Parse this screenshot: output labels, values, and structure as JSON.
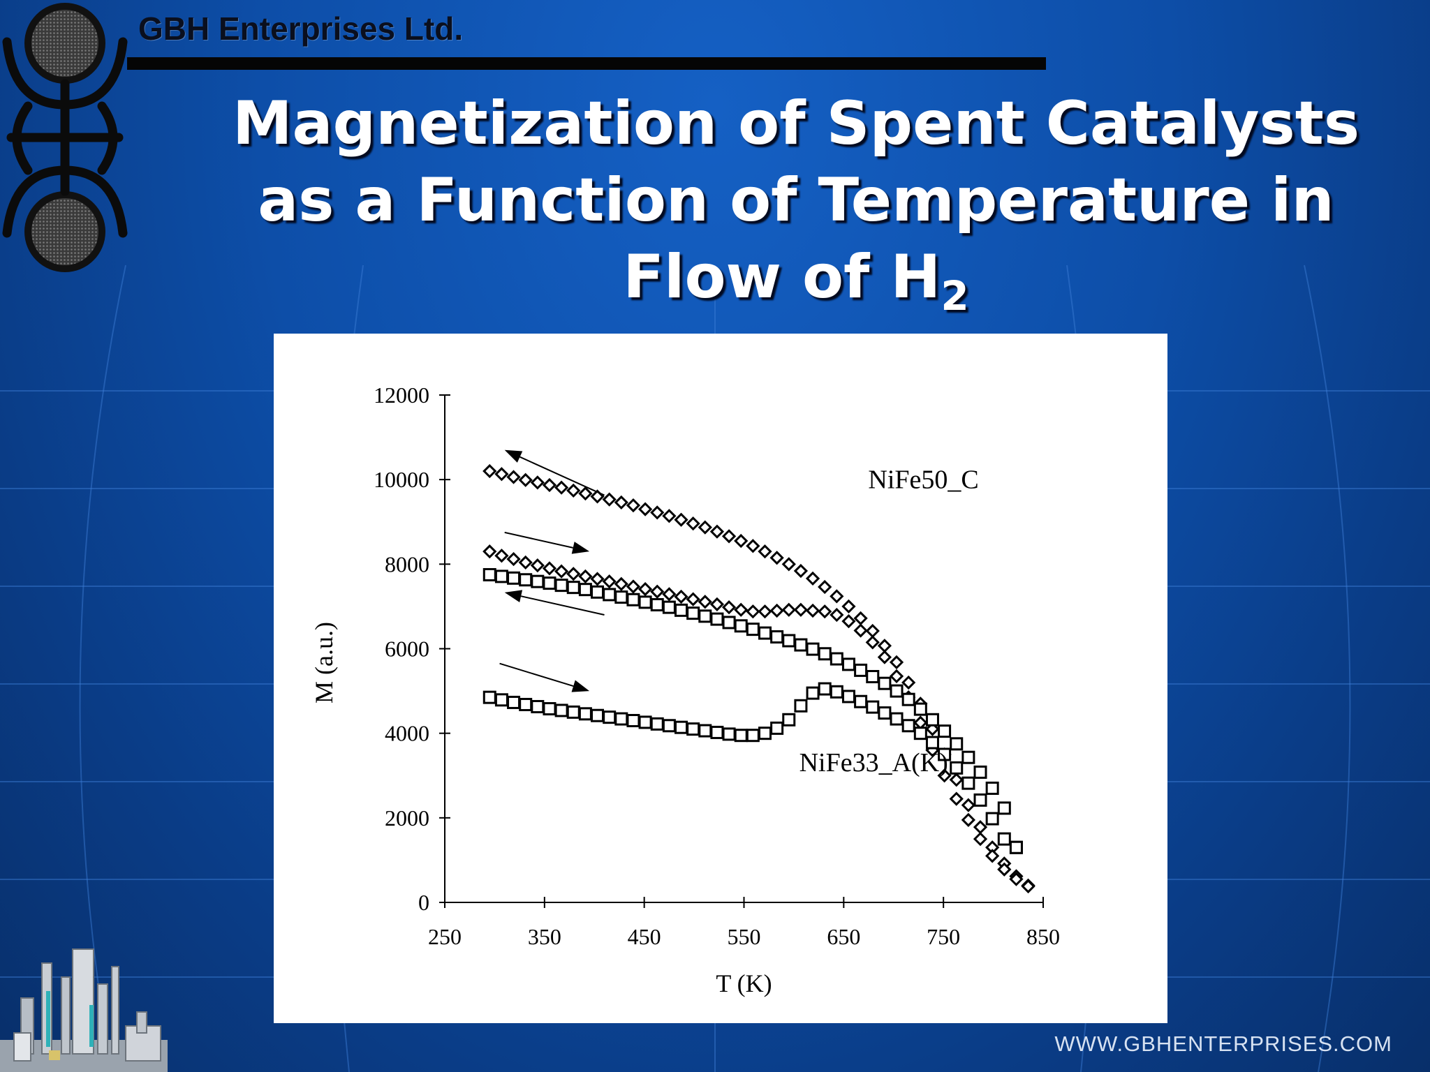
{
  "header": {
    "company": "GBH Enterprises Ltd.",
    "title_lines": [
      "Magnetization of Spent Catalysts",
      "as a Function of Temperature in",
      "Flow of H"
    ],
    "title_subscript": "2"
  },
  "footer": {
    "website": "WWW.GBHENTERPRISES.COM"
  },
  "colors": {
    "background": "#0d4ea8",
    "title": "#ffffff",
    "plot_background": "#ffffff",
    "ink": "#000000"
  },
  "chart_data": {
    "type": "scatter",
    "title": "",
    "xlabel": "T (K)",
    "ylabel": "M (a.u.)",
    "xlim": [
      250,
      850
    ],
    "ylim": [
      0,
      12000
    ],
    "xticks": [
      250,
      350,
      450,
      550,
      650,
      750,
      850
    ],
    "yticks": [
      0,
      2000,
      4000,
      6000,
      8000,
      10000,
      12000
    ],
    "grid": false,
    "annotations": [
      {
        "text": "NiFe50_C",
        "x": 730,
        "y": 9800
      },
      {
        "text": "NiFe33_A(K)",
        "x": 680,
        "y": 3100
      }
    ],
    "arrows": [
      {
        "from": [
          410,
          9630
        ],
        "to": [
          310,
          10700
        ]
      },
      {
        "from": [
          310,
          8750
        ],
        "to": [
          395,
          8300
        ]
      },
      {
        "from": [
          410,
          6800
        ],
        "to": [
          310,
          7330
        ]
      },
      {
        "from": [
          305,
          5650
        ],
        "to": [
          395,
          5000
        ]
      }
    ],
    "series": [
      {
        "marker": "diamond",
        "x": [
          295,
          307,
          319,
          331,
          343,
          355,
          367,
          379,
          391,
          403,
          415,
          427,
          439,
          451,
          463,
          475,
          487,
          499,
          511,
          523,
          535,
          547,
          559,
          571,
          583,
          595,
          607,
          619,
          631,
          643,
          655,
          667,
          679,
          691,
          703,
          715,
          727,
          739,
          751,
          763,
          775,
          787,
          799,
          811,
          823,
          835
        ],
        "y": [
          10200,
          10130,
          10060,
          9990,
          9930,
          9870,
          9810,
          9740,
          9670,
          9600,
          9530,
          9460,
          9390,
          9300,
          9220,
          9140,
          9050,
          8960,
          8870,
          8770,
          8660,
          8550,
          8430,
          8300,
          8150,
          8000,
          7840,
          7660,
          7460,
          7240,
          7000,
          6720,
          6420,
          6070,
          5680,
          5200,
          4700,
          4100,
          3500,
          2900,
          2300,
          1780,
          1300,
          920,
          620,
          400
        ]
      },
      {
        "marker": "diamond",
        "x": [
          295,
          307,
          319,
          331,
          343,
          355,
          367,
          379,
          391,
          403,
          415,
          427,
          439,
          451,
          463,
          475,
          487,
          499,
          511,
          523,
          535,
          547,
          559,
          571,
          583,
          595,
          607,
          619,
          631,
          643,
          655,
          667,
          679,
          691,
          703,
          715,
          727,
          739,
          751,
          763,
          775,
          787,
          799,
          811,
          823,
          835
        ],
        "y": [
          8300,
          8200,
          8120,
          8040,
          7970,
          7900,
          7830,
          7770,
          7710,
          7650,
          7590,
          7530,
          7470,
          7410,
          7350,
          7290,
          7230,
          7170,
          7110,
          7050,
          6980,
          6920,
          6880,
          6880,
          6900,
          6920,
          6920,
          6900,
          6880,
          6800,
          6650,
          6430,
          6150,
          5800,
          5350,
          4850,
          4250,
          3600,
          3000,
          2450,
          1950,
          1500,
          1100,
          780,
          550,
          380
        ]
      },
      {
        "marker": "square",
        "x": [
          295,
          307,
          319,
          331,
          343,
          355,
          367,
          379,
          391,
          403,
          415,
          427,
          439,
          451,
          463,
          475,
          487,
          499,
          511,
          523,
          535,
          547,
          559,
          571,
          583,
          595,
          607,
          619,
          631,
          643,
          655,
          667,
          679,
          691,
          703,
          715,
          727,
          739,
          751,
          763,
          775,
          787,
          799,
          811,
          823
        ],
        "y": [
          7750,
          7710,
          7670,
          7630,
          7590,
          7550,
          7500,
          7450,
          7400,
          7340,
          7280,
          7220,
          7160,
          7100,
          7040,
          6980,
          6910,
          6840,
          6770,
          6700,
          6620,
          6540,
          6460,
          6370,
          6280,
          6190,
          6090,
          5990,
          5880,
          5760,
          5630,
          5490,
          5340,
          5180,
          5000,
          4800,
          4570,
          4320,
          4050,
          3750,
          3430,
          3080,
          2700,
          2230,
          1300
        ]
      },
      {
        "marker": "square",
        "x": [
          295,
          307,
          319,
          331,
          343,
          355,
          367,
          379,
          391,
          403,
          415,
          427,
          439,
          451,
          463,
          475,
          487,
          499,
          511,
          523,
          535,
          547,
          559,
          571,
          583,
          595,
          607,
          619,
          631,
          643,
          655,
          667,
          679,
          691,
          703,
          715,
          727,
          739,
          751,
          763,
          775,
          787,
          799,
          811,
          823
        ],
        "y": [
          4850,
          4790,
          4730,
          4680,
          4630,
          4580,
          4540,
          4500,
          4460,
          4420,
          4380,
          4340,
          4300,
          4260,
          4220,
          4180,
          4140,
          4100,
          4060,
          4020,
          3980,
          3950,
          3950,
          4000,
          4120,
          4320,
          4650,
          4950,
          5050,
          4980,
          4870,
          4750,
          4620,
          4480,
          4340,
          4180,
          4000,
          3780,
          3500,
          3180,
          2820,
          2420,
          1980,
          1500,
          1300
        ]
      }
    ]
  }
}
